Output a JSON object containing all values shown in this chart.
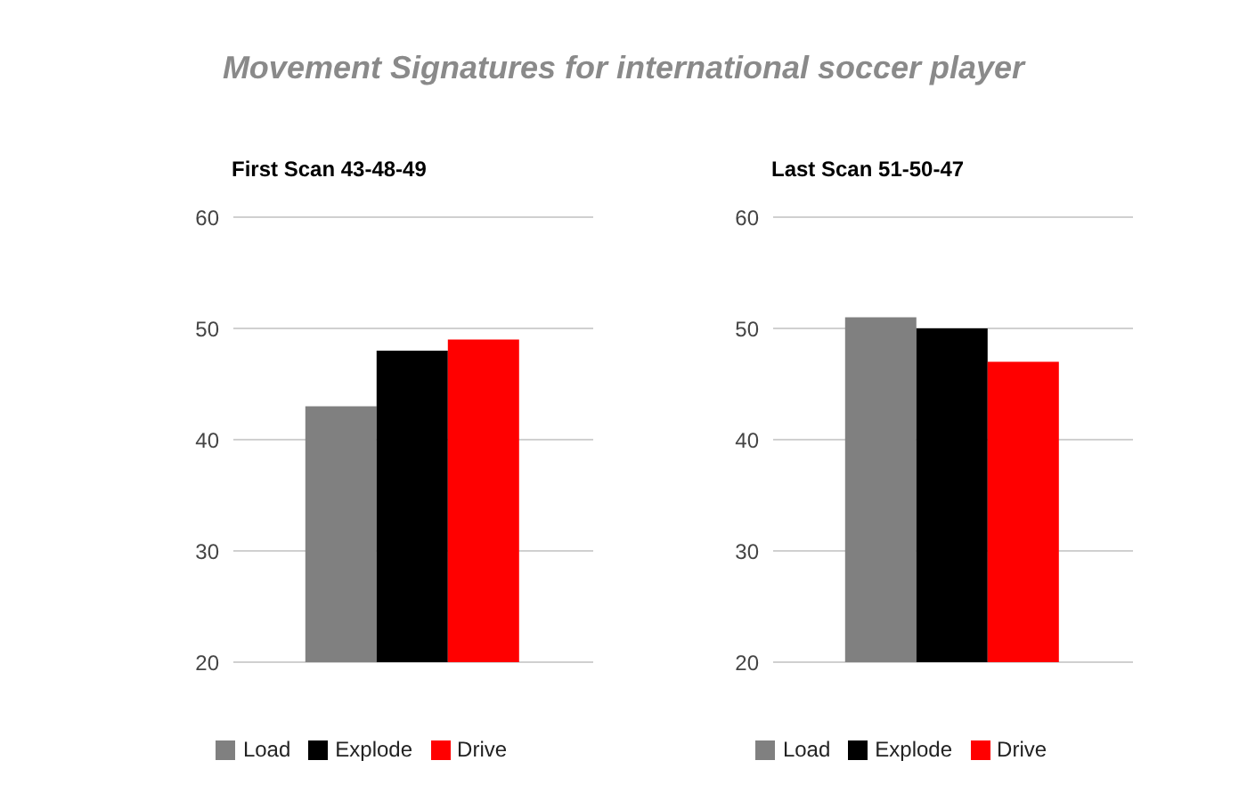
{
  "chart_data": [
    {
      "type": "bar",
      "title": "First Scan 43-48-49",
      "annotations": [
        "Movement Signatures for international soccer player"
      ],
      "categories": [
        null
      ],
      "series": [
        {
          "name": "Load",
          "color": "#808080",
          "values": [
            43
          ]
        },
        {
          "name": "Explode",
          "color": "#000000",
          "values": [
            48
          ]
        },
        {
          "name": "Drive",
          "color": "#ff0000",
          "values": [
            49
          ]
        }
      ],
      "ylim": [
        20,
        60
      ],
      "yticks": [
        20,
        30,
        40,
        50,
        60
      ],
      "grid": "y",
      "legend": "bottom"
    },
    {
      "type": "bar",
      "title": "Last Scan 51-50-47",
      "categories": [
        null
      ],
      "series": [
        {
          "name": "Load",
          "color": "#808080",
          "values": [
            51
          ]
        },
        {
          "name": "Explode",
          "color": "#000000",
          "values": [
            50
          ]
        },
        {
          "name": "Drive",
          "color": "#ff0000",
          "values": [
            47
          ]
        }
      ],
      "ylim": [
        20,
        60
      ],
      "yticks": [
        20,
        30,
        40,
        50,
        60
      ],
      "grid": "y",
      "legend": "bottom"
    }
  ]
}
